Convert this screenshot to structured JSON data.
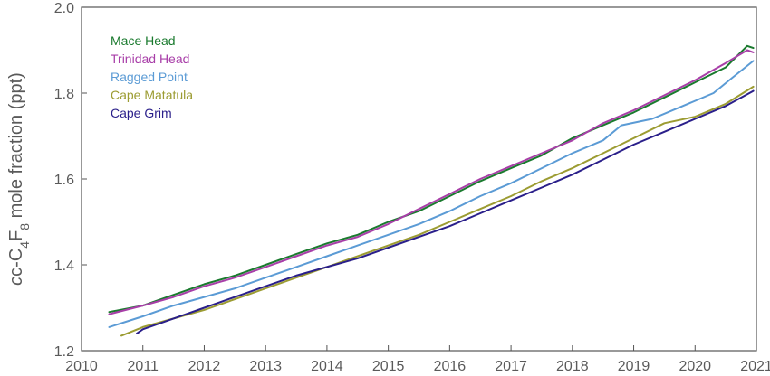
{
  "chart_data": {
    "type": "line",
    "xlabel": "",
    "ylabel_prefix": "c-C",
    "ylabel_sub1": "4",
    "ylabel_mid": "F",
    "ylabel_sub2": "8",
    "ylabel_suffix": " mole fraction (ppt)",
    "xlim": [
      2010,
      2021
    ],
    "ylim": [
      1.2,
      2.0
    ],
    "x_ticks": [
      "2010",
      "2011",
      "2012",
      "2013",
      "2014",
      "2015",
      "2016",
      "2017",
      "2018",
      "2019",
      "2020",
      "2021"
    ],
    "y_ticks": [
      "1.2",
      "1.4",
      "1.6",
      "1.8",
      "2.0"
    ],
    "grid": false,
    "legend_position": "top-left",
    "series": [
      {
        "name": "Mace Head",
        "color": "#1a7a2e",
        "x": [
          2010.45,
          2011.0,
          2011.5,
          2012.0,
          2012.5,
          2013.0,
          2013.5,
          2014.0,
          2014.5,
          2015.0,
          2015.5,
          2016.0,
          2016.5,
          2017.0,
          2017.5,
          2018.0,
          2018.5,
          2019.0,
          2019.5,
          2020.0,
          2020.5,
          2020.85,
          2020.95
        ],
        "y": [
          1.29,
          1.305,
          1.33,
          1.355,
          1.375,
          1.4,
          1.425,
          1.45,
          1.47,
          1.5,
          1.525,
          1.56,
          1.595,
          1.625,
          1.655,
          1.695,
          1.725,
          1.755,
          1.79,
          1.825,
          1.86,
          1.91,
          1.905
        ]
      },
      {
        "name": "Trinidad Head",
        "color": "#a83ea8",
        "x": [
          2010.45,
          2011.0,
          2011.5,
          2012.0,
          2012.5,
          2013.0,
          2013.5,
          2014.0,
          2014.5,
          2015.0,
          2015.5,
          2016.0,
          2016.5,
          2017.0,
          2017.5,
          2018.0,
          2018.5,
          2019.0,
          2019.5,
          2020.0,
          2020.5,
          2020.85,
          2020.95
        ],
        "y": [
          1.285,
          1.305,
          1.325,
          1.35,
          1.37,
          1.395,
          1.42,
          1.445,
          1.465,
          1.495,
          1.53,
          1.565,
          1.6,
          1.63,
          1.66,
          1.69,
          1.73,
          1.76,
          1.795,
          1.83,
          1.87,
          1.9,
          1.895
        ]
      },
      {
        "name": "Ragged Point",
        "color": "#5b9bd5",
        "x": [
          2010.45,
          2011.0,
          2011.5,
          2012.0,
          2012.5,
          2013.0,
          2013.5,
          2014.0,
          2014.5,
          2015.0,
          2015.5,
          2016.0,
          2016.5,
          2017.0,
          2017.5,
          2018.0,
          2018.5,
          2018.8,
          2019.3,
          2019.8,
          2020.3,
          2020.6,
          2020.95
        ],
        "y": [
          1.255,
          1.28,
          1.305,
          1.325,
          1.345,
          1.37,
          1.395,
          1.42,
          1.445,
          1.47,
          1.495,
          1.525,
          1.56,
          1.59,
          1.625,
          1.66,
          1.69,
          1.725,
          1.74,
          1.77,
          1.8,
          1.835,
          1.875
        ]
      },
      {
        "name": "Cape Matatula",
        "color": "#9c9c32",
        "x": [
          2010.65,
          2011.0,
          2011.5,
          2012.0,
          2012.5,
          2013.0,
          2013.5,
          2014.0,
          2014.5,
          2015.0,
          2015.5,
          2016.0,
          2016.5,
          2017.0,
          2017.5,
          2018.0,
          2018.5,
          2019.0,
          2019.5,
          2020.0,
          2020.5,
          2020.95
        ],
        "y": [
          1.235,
          1.255,
          1.275,
          1.295,
          1.32,
          1.345,
          1.37,
          1.395,
          1.42,
          1.445,
          1.47,
          1.5,
          1.53,
          1.56,
          1.595,
          1.625,
          1.66,
          1.695,
          1.73,
          1.745,
          1.775,
          1.815
        ]
      },
      {
        "name": "Cape Grim",
        "color": "#2a1f8a",
        "x": [
          2010.9,
          2011.0,
          2011.5,
          2012.0,
          2012.5,
          2013.0,
          2013.5,
          2014.0,
          2014.5,
          2015.0,
          2015.5,
          2016.0,
          2016.5,
          2017.0,
          2017.5,
          2018.0,
          2018.5,
          2019.0,
          2019.5,
          2020.0,
          2020.5,
          2020.95
        ],
        "y": [
          1.24,
          1.25,
          1.275,
          1.3,
          1.325,
          1.35,
          1.375,
          1.395,
          1.415,
          1.44,
          1.465,
          1.49,
          1.52,
          1.55,
          1.58,
          1.61,
          1.645,
          1.68,
          1.71,
          1.74,
          1.77,
          1.805
        ]
      }
    ]
  }
}
